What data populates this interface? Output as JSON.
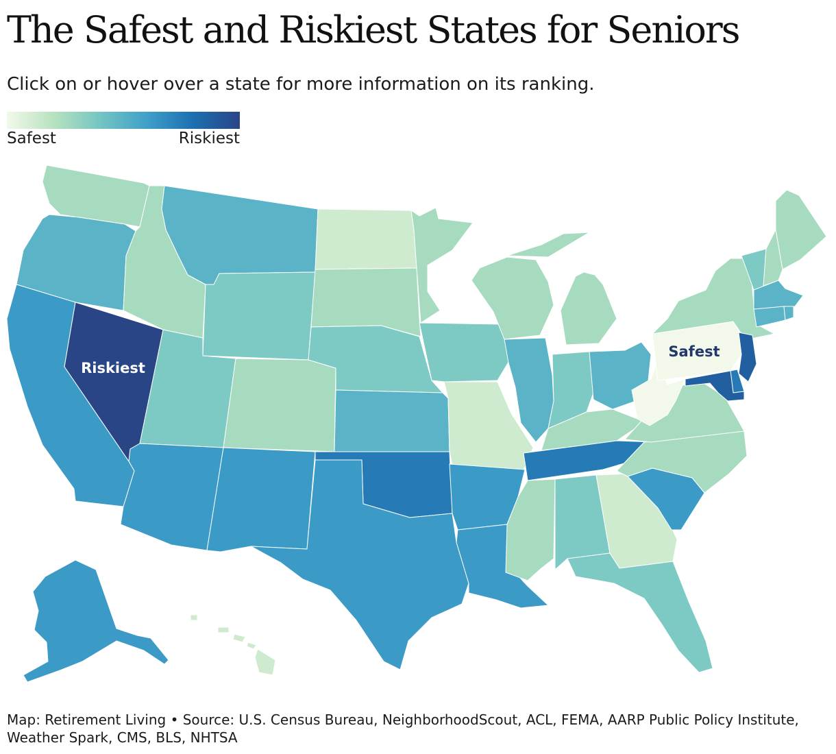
{
  "title": "The Safest and Riskiest States for Seniors",
  "subtitle": "Click on or hover over a state for more information on its ranking.",
  "legend": {
    "low_label": "Safest",
    "high_label": "Riskiest",
    "gradient": [
      "#f2f9ea",
      "#b8e2bf",
      "#74c5c3",
      "#3fa0c9",
      "#1d6fb0",
      "#2a4586"
    ]
  },
  "callouts": {
    "riskiest": {
      "label": "Riskiest",
      "state": "NV",
      "color": "#ffffff"
    },
    "safest": {
      "label": "Safest",
      "state": "PA",
      "color": "#22376b"
    }
  },
  "states": [
    {
      "id": "WA",
      "name": "Washington",
      "tier": 2
    },
    {
      "id": "OR",
      "name": "Oregon",
      "tier": 4
    },
    {
      "id": "CA",
      "name": "California",
      "tier": 5
    },
    {
      "id": "NV",
      "name": "Nevada",
      "tier": 8
    },
    {
      "id": "ID",
      "name": "Idaho",
      "tier": 2
    },
    {
      "id": "MT",
      "name": "Montana",
      "tier": 4
    },
    {
      "id": "WY",
      "name": "Wyoming",
      "tier": 3
    },
    {
      "id": "UT",
      "name": "Utah",
      "tier": 3
    },
    {
      "id": "AZ",
      "name": "Arizona",
      "tier": 5
    },
    {
      "id": "CO",
      "name": "Colorado",
      "tier": 2
    },
    {
      "id": "NM",
      "name": "New Mexico",
      "tier": 5
    },
    {
      "id": "ND",
      "name": "North Dakota",
      "tier": 1
    },
    {
      "id": "SD",
      "name": "South Dakota",
      "tier": 2
    },
    {
      "id": "NE",
      "name": "Nebraska",
      "tier": 3
    },
    {
      "id": "KS",
      "name": "Kansas",
      "tier": 4
    },
    {
      "id": "OK",
      "name": "Oklahoma",
      "tier": 6
    },
    {
      "id": "TX",
      "name": "Texas",
      "tier": 5
    },
    {
      "id": "MN",
      "name": "Minnesota",
      "tier": 2
    },
    {
      "id": "IA",
      "name": "Iowa",
      "tier": 3
    },
    {
      "id": "MO",
      "name": "Missouri",
      "tier": 1
    },
    {
      "id": "AR",
      "name": "Arkansas",
      "tier": 5
    },
    {
      "id": "LA",
      "name": "Louisiana",
      "tier": 5
    },
    {
      "id": "WI",
      "name": "Wisconsin",
      "tier": 2
    },
    {
      "id": "IL",
      "name": "Illinois",
      "tier": 4
    },
    {
      "id": "MI",
      "name": "Michigan",
      "tier": 2
    },
    {
      "id": "IN",
      "name": "Indiana",
      "tier": 3
    },
    {
      "id": "OH",
      "name": "Ohio",
      "tier": 4
    },
    {
      "id": "KY",
      "name": "Kentucky",
      "tier": 2
    },
    {
      "id": "TN",
      "name": "Tennessee",
      "tier": 6
    },
    {
      "id": "MS",
      "name": "Mississippi",
      "tier": 2
    },
    {
      "id": "AL",
      "name": "Alabama",
      "tier": 3
    },
    {
      "id": "GA",
      "name": "Georgia",
      "tier": 1
    },
    {
      "id": "FL",
      "name": "Florida",
      "tier": 3
    },
    {
      "id": "SC",
      "name": "South Carolina",
      "tier": 5
    },
    {
      "id": "NC",
      "name": "North Carolina",
      "tier": 2
    },
    {
      "id": "VA",
      "name": "Virginia",
      "tier": 2
    },
    {
      "id": "WV",
      "name": "West Virginia",
      "tier": 0
    },
    {
      "id": "PA",
      "name": "Pennsylvania",
      "tier": 0
    },
    {
      "id": "NY",
      "name": "New York",
      "tier": 2
    },
    {
      "id": "VT",
      "name": "Vermont",
      "tier": 3
    },
    {
      "id": "NH",
      "name": "New Hampshire",
      "tier": 2
    },
    {
      "id": "ME",
      "name": "Maine",
      "tier": 2
    },
    {
      "id": "MA",
      "name": "Massachusetts",
      "tier": 4
    },
    {
      "id": "CT",
      "name": "Connecticut",
      "tier": 4
    },
    {
      "id": "RI",
      "name": "Rhode Island",
      "tier": 4
    },
    {
      "id": "NJ",
      "name": "New Jersey",
      "tier": 7
    },
    {
      "id": "DE",
      "name": "Delaware",
      "tier": 6
    },
    {
      "id": "MD",
      "name": "Maryland",
      "tier": 7
    },
    {
      "id": "AK",
      "name": "Alaska",
      "tier": 5
    },
    {
      "id": "HI",
      "name": "Hawaii",
      "tier": 1
    }
  ],
  "source": "Map: Retirement Living • Source: U.S. Census Bureau, NeighborhoodScout, ACL, FEMA, AARP Public Policy Institute, Weather Spark, CMS, BLS, NHTSA"
}
